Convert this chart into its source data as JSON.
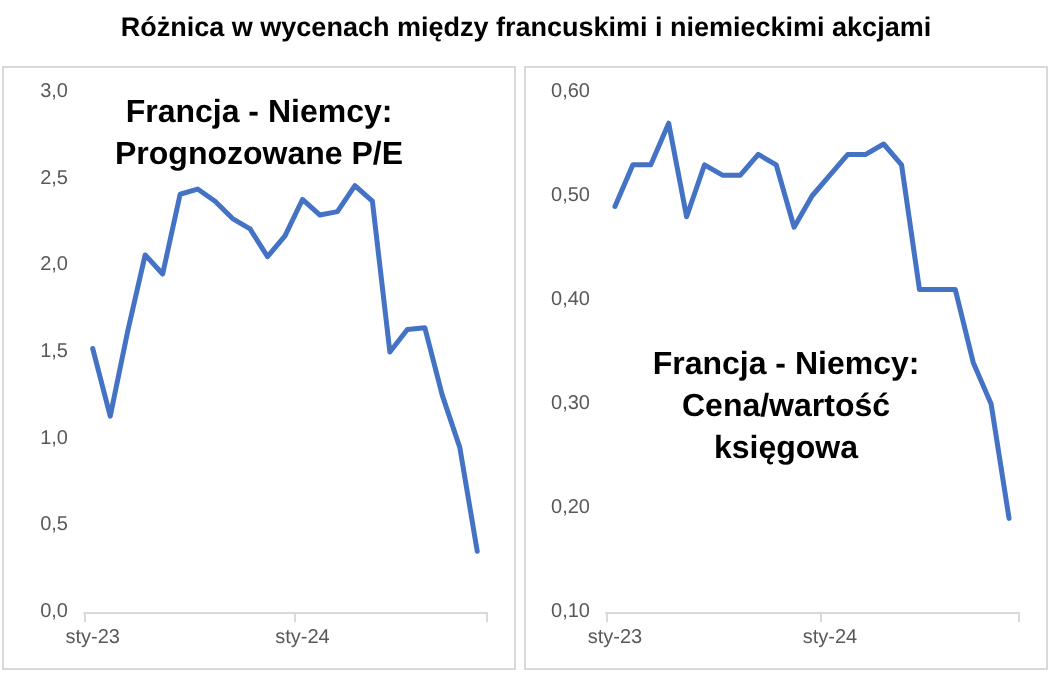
{
  "chart_data": [
    {
      "type": "line",
      "title": "Różnica w wycenach między francuskimi i niemieckimi akcjami",
      "annotations": [
        "Francja - Niemcy:\nPrognozowane P/E"
      ],
      "categories": [
        "sty-23",
        null,
        null,
        null,
        null,
        null,
        null,
        null,
        null,
        null,
        null,
        null,
        "sty-24",
        null,
        null,
        null,
        null,
        null,
        null,
        null,
        null,
        null,
        null
      ],
      "series": [
        {
          "color": "#4472c4",
          "values": [
            1.52,
            1.13,
            1.62,
            2.06,
            1.95,
            2.41,
            2.44,
            2.37,
            2.27,
            2.21,
            2.05,
            2.17,
            2.38,
            2.29,
            2.31,
            2.46,
            2.37,
            1.5,
            1.63,
            1.64,
            1.25,
            0.95,
            0.35
          ]
        }
      ],
      "ylim": [
        0,
        3
      ],
      "yticks": [
        {
          "value": 0,
          "label": "0,0"
        },
        {
          "value": 0.5,
          "label": "0,5"
        },
        {
          "value": 1,
          "label": "1,0"
        },
        {
          "value": 1.5,
          "label": "1,5"
        },
        {
          "value": 2,
          "label": "2,0"
        },
        {
          "value": 2.5,
          "label": "2,5"
        },
        {
          "value": 3,
          "label": "3,0"
        }
      ],
      "grid": false,
      "marker": "none",
      "line_style": "solid"
    },
    {
      "type": "line",
      "annotations": [
        "Francja - Niemcy:\nCena/wartość\nksięgowa"
      ],
      "categories": [
        "sty-23",
        null,
        null,
        null,
        null,
        null,
        null,
        null,
        null,
        null,
        null,
        null,
        "sty-24",
        null,
        null,
        null,
        null,
        null,
        null,
        null,
        null,
        null,
        null
      ],
      "series": [
        {
          "color": "#4472c4",
          "values": [
            0.49,
            0.53,
            0.53,
            0.57,
            0.48,
            0.53,
            0.52,
            0.52,
            0.54,
            0.53,
            0.47,
            0.5,
            0.52,
            0.54,
            0.54,
            0.55,
            0.53,
            0.41,
            0.41,
            0.41,
            0.34,
            0.3,
            0.19
          ]
        }
      ],
      "ylim": [
        0.1,
        0.6
      ],
      "yticks": [
        {
          "value": 0.1,
          "label": "0,10"
        },
        {
          "value": 0.2,
          "label": "0,20"
        },
        {
          "value": 0.3,
          "label": "0,30"
        },
        {
          "value": 0.4,
          "label": "0,40"
        },
        {
          "value": 0.5,
          "label": "0,50"
        },
        {
          "value": 0.6,
          "label": "0,60"
        }
      ],
      "grid": false,
      "marker": "none",
      "line_style": "solid"
    }
  ]
}
